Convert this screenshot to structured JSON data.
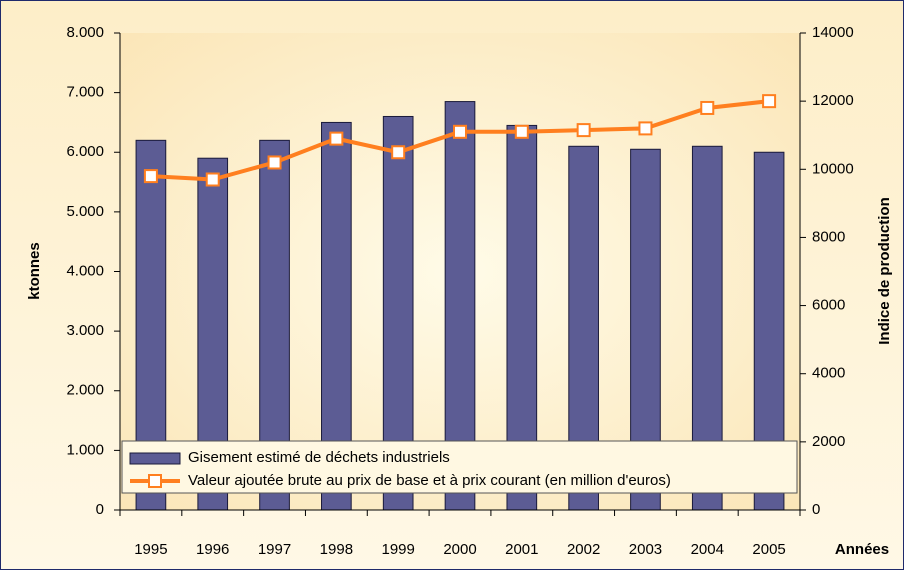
{
  "chart_data": {
    "type": "bar_line",
    "categories": [
      "1995",
      "1996",
      "1997",
      "1998",
      "1999",
      "2000",
      "2001",
      "2002",
      "2003",
      "2004",
      "2005"
    ],
    "x_label": "Années",
    "y_label": "ktonnes",
    "y2_label": "Indice de production",
    "ylim": [
      0,
      8000
    ],
    "yticks": [
      0,
      {
        "value": 1000,
        "label": "1.000"
      },
      {
        "value": 2000,
        "label": "2.000"
      },
      {
        "value": 3000,
        "label": "3.000"
      },
      {
        "value": 4000,
        "label": "4.000"
      },
      {
        "value": 5000,
        "label": "5.000"
      },
      {
        "value": 6000,
        "label": "6.000"
      },
      {
        "value": 7000,
        "label": "7.000"
      },
      {
        "value": 8000,
        "label": "8.000"
      }
    ],
    "y2lim": [
      0,
      14000
    ],
    "y2ticks": [
      0,
      2000,
      4000,
      6000,
      8000,
      10000,
      12000,
      14000
    ],
    "series": [
      {
        "name": "Gisement estimé de déchets industriels",
        "type": "bar",
        "color": "#5c5c94",
        "values": [
          6200,
          5900,
          6200,
          6500,
          6600,
          6850,
          6450,
          6100,
          6050,
          6100,
          6000
        ]
      },
      {
        "name": "Valeur ajoutée brute au prix de base et à prix courant (en million d'euros)",
        "type": "line",
        "axis": "y2",
        "color": "#ff7f1f",
        "values": [
          9800,
          9700,
          10200,
          10900,
          10500,
          11100,
          11100,
          11150,
          11200,
          11800,
          12000
        ]
      }
    ]
  }
}
